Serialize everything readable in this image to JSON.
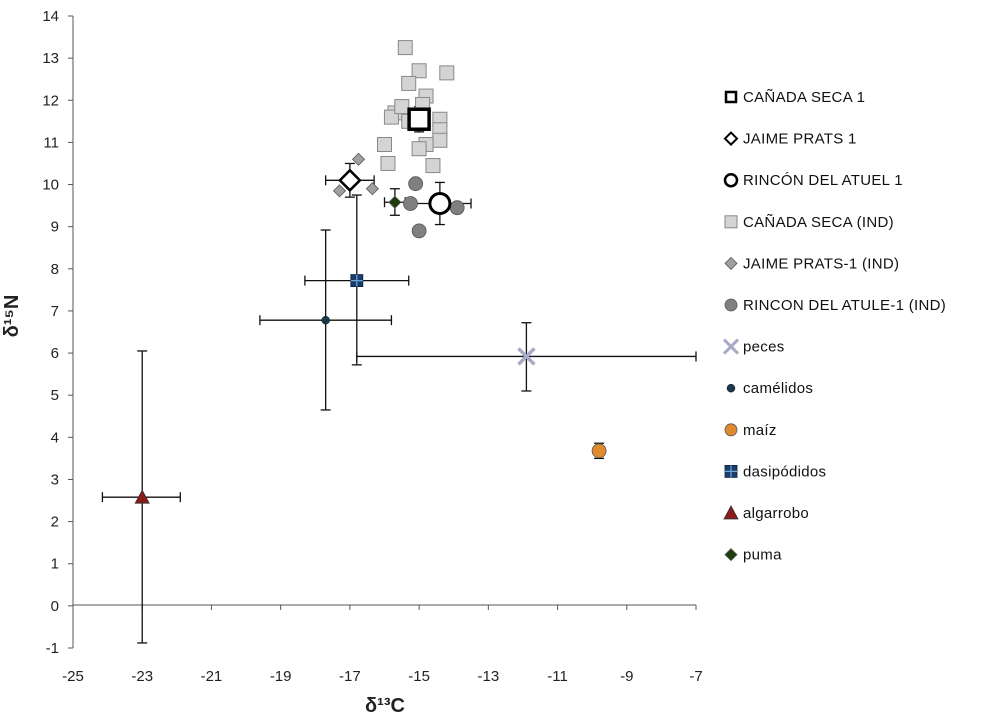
{
  "chart_data": {
    "type": "scatter",
    "xlabel": "δ¹³C",
    "ylabel": "δ¹⁵N",
    "xlim": [
      -25,
      -7
    ],
    "ylim": [
      -1,
      14
    ],
    "x_ticks": [
      -25,
      -23,
      -21,
      -19,
      -17,
      -15,
      -13,
      -11,
      -9,
      -7
    ],
    "y_ticks": [
      -1,
      0,
      1,
      2,
      3,
      4,
      5,
      6,
      7,
      8,
      9,
      10,
      11,
      12,
      13,
      14
    ],
    "grid": false,
    "legend_position": "right",
    "series": [
      {
        "name": "CAÑADA SECA 1",
        "marker": "square-open-large",
        "color": "#000000",
        "points": [
          {
            "x": -15.0,
            "y": 11.55,
            "xerr": 0.3,
            "yerr": 0.3
          }
        ]
      },
      {
        "name": "JAIME PRATS 1",
        "marker": "diamond-open",
        "color": "#000000",
        "points": [
          {
            "x": -17.0,
            "y": 10.1,
            "xerr": 0.7,
            "yerr": 0.4
          }
        ]
      },
      {
        "name": "RINCÓN DEL ATUEL 1",
        "marker": "circle-open-large",
        "color": "#000000",
        "points": [
          {
            "x": -14.4,
            "y": 9.55,
            "xerr": 0.9,
            "yerr": 0.5
          }
        ]
      },
      {
        "name": "CAÑADA SECA (IND)",
        "marker": "square",
        "color": "#d4d4d4",
        "points": [
          {
            "x": -15.4,
            "y": 13.25
          },
          {
            "x": -15.0,
            "y": 12.7
          },
          {
            "x": -14.2,
            "y": 12.65
          },
          {
            "x": -15.3,
            "y": 12.4
          },
          {
            "x": -14.8,
            "y": 12.1
          },
          {
            "x": -15.7,
            "y": 11.7
          },
          {
            "x": -15.8,
            "y": 11.6
          },
          {
            "x": -15.5,
            "y": 11.85
          },
          {
            "x": -14.9,
            "y": 11.9
          },
          {
            "x": -15.3,
            "y": 11.5
          },
          {
            "x": -14.4,
            "y": 11.55
          },
          {
            "x": -14.4,
            "y": 11.3
          },
          {
            "x": -14.4,
            "y": 11.05
          },
          {
            "x": -16.0,
            "y": 10.95
          },
          {
            "x": -14.8,
            "y": 10.95
          },
          {
            "x": -15.0,
            "y": 10.85
          },
          {
            "x": -15.9,
            "y": 10.5
          },
          {
            "x": -14.6,
            "y": 10.45
          }
        ]
      },
      {
        "name": "JAIME PRATS-1 (IND)",
        "marker": "diamond",
        "color": "#a0a0a0",
        "points": [
          {
            "x": -16.75,
            "y": 10.6
          },
          {
            "x": -17.3,
            "y": 9.85
          },
          {
            "x": -16.35,
            "y": 9.9
          }
        ]
      },
      {
        "name": "RINCON DEL ATULE-1 (IND)",
        "marker": "circle",
        "color": "#808080",
        "points": [
          {
            "x": -15.1,
            "y": 10.02
          },
          {
            "x": -15.25,
            "y": 9.55
          },
          {
            "x": -13.9,
            "y": 9.45
          },
          {
            "x": -15.0,
            "y": 8.9
          }
        ]
      },
      {
        "name": "peces",
        "marker": "x",
        "color": "#a9a9c8",
        "points": [
          {
            "x": -11.9,
            "y": 5.92,
            "xlow": -16.8,
            "xhigh": -7.0,
            "ylow": 5.1,
            "yhigh": 6.72
          }
        ]
      },
      {
        "name": "camélidos",
        "marker": "dot",
        "color": "#1a3a4a",
        "points": [
          {
            "x": -17.7,
            "y": 6.78,
            "xlow": -19.6,
            "xhigh": -15.8,
            "ylow": 4.65,
            "yhigh": 8.92
          }
        ]
      },
      {
        "name": "maíz",
        "marker": "circle",
        "color": "#e08a2e",
        "points": [
          {
            "x": -9.8,
            "y": 3.68,
            "ylow": 3.5,
            "yhigh": 3.86
          }
        ]
      },
      {
        "name": "dasipódidos",
        "marker": "square-cross",
        "color": "#1c3c6c",
        "points": [
          {
            "x": -16.8,
            "y": 7.72,
            "xlow": -18.3,
            "xhigh": -15.3,
            "ylow": 5.72,
            "yhigh": 9.75
          }
        ]
      },
      {
        "name": "algarrobo",
        "marker": "triangle",
        "color": "#8b1a1a",
        "points": [
          {
            "x": -23.0,
            "y": 2.58,
            "xlow": -24.15,
            "xhigh": -21.9,
            "ylow": -0.88,
            "yhigh": 6.05
          }
        ]
      },
      {
        "name": "puma",
        "marker": "diamond",
        "color": "#1f3d0c",
        "points": [
          {
            "x": -15.7,
            "y": 9.58,
            "xlow": -16.0,
            "xhigh": -15.4,
            "ylow": 9.27,
            "yhigh": 9.9
          }
        ]
      }
    ]
  }
}
